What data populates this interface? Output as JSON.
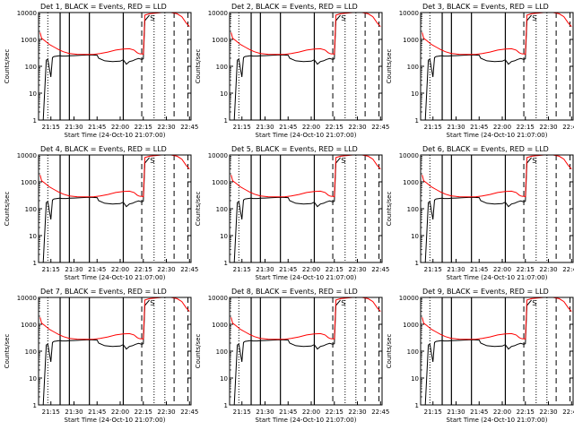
{
  "chart_data": [
    {
      "type": "line",
      "title": "Det 1, BLACK = Events, RED = LLD",
      "xlabel": "Start Time (24-Oct-10 21:07:00)",
      "ylabel": "Counts/sec",
      "scale": "log-y"
    },
    {
      "type": "line",
      "title": "Det 2, BLACK = Events, RED = LLD",
      "xlabel": "Start Time (24-Oct-10 21:07:00)",
      "ylabel": "Counts/sec",
      "scale": "log-y"
    },
    {
      "type": "line",
      "title": "Det 3, BLACK = Events, RED = LLD",
      "xlabel": "Start Time (24-Oct-10 21:07:00)",
      "ylabel": "Counts/sec",
      "scale": "log-y"
    },
    {
      "type": "line",
      "title": "Det 4, BLACK = Events, RED = LLD",
      "xlabel": "Start Time (24-Oct-10 21:07:00)",
      "ylabel": "Counts/sec",
      "scale": "log-y"
    },
    {
      "type": "line",
      "title": "Det 5, BLACK = Events, RED = LLD",
      "xlabel": "Start Time (24-Oct-10 21:07:00)",
      "ylabel": "Counts/sec",
      "scale": "log-y"
    },
    {
      "type": "line",
      "title": "Det 6, BLACK = Events, RED = LLD",
      "xlabel": "Start Time (24-Oct-10 21:07:00)",
      "ylabel": "Counts/sec",
      "scale": "log-y"
    },
    {
      "type": "line",
      "title": "Det 7, BLACK = Events, RED = LLD",
      "xlabel": "Start Time (24-Oct-10 21:07:00)",
      "ylabel": "Counts/sec",
      "scale": "log-y"
    },
    {
      "type": "line",
      "title": "Det 8, BLACK = Events, RED = LLD",
      "xlabel": "Start Time (24-Oct-10 21:07:00)",
      "ylabel": "Counts/sec",
      "scale": "log-y"
    },
    {
      "type": "line",
      "title": "Det 9, BLACK = Events, RED = LLD",
      "xlabel": "Start Time (24-Oct-10 21:07:00)",
      "ylabel": "Counts/sec",
      "scale": "log-y"
    }
  ],
  "shared": {
    "x_range": [
      "21:07:00",
      "22:46:00"
    ],
    "ylim": [
      1,
      10000
    ],
    "x_ticks": [
      "21:15",
      "21:30",
      "21:45",
      "22:00",
      "22:15",
      "22:30",
      "22:45"
    ],
    "y_ticks": [
      1,
      10,
      100,
      1000,
      10000
    ],
    "y_tick_labels": [
      "1",
      "10",
      "100",
      "1000",
      "10000"
    ],
    "solid_markers": [
      "21:21",
      "21:27",
      "21:40",
      "22:02"
    ],
    "dashed_markers": [
      "22:14",
      "22:35",
      "22:44"
    ],
    "dotted_markers": [
      "21:13",
      "22:22",
      "22:29"
    ],
    "saa_label": "S",
    "series_colors": {
      "events": "#000000",
      "lld": "#ff0000",
      "markers": "#000000"
    }
  },
  "series_events": {
    "x": [
      "21:08",
      "21:10",
      "21:12",
      "21:13",
      "21:15",
      "21:16",
      "21:17",
      "21:19",
      "21:21",
      "21:22",
      "21:25",
      "21:27",
      "21:30",
      "21:35",
      "21:40",
      "21:45",
      "21:46",
      "21:50",
      "21:55",
      "22:00",
      "22:02",
      "22:04",
      "22:06",
      "22:08",
      "22:10",
      "22:12",
      "22:14",
      "22:15",
      "22:16",
      "22:19"
    ],
    "y": [
      0,
      0,
      170,
      180,
      40,
      210,
      230,
      240,
      250,
      240,
      240,
      245,
      250,
      260,
      265,
      260,
      200,
      160,
      150,
      155,
      175,
      120,
      150,
      160,
      180,
      195,
      180,
      190,
      5000,
      8000
    ]
  },
  "series_lld": {
    "x": [
      "21:08",
      "21:09",
      "21:11",
      "21:14",
      "21:17",
      "21:20",
      "21:23",
      "21:27",
      "21:32",
      "21:38",
      "21:43",
      "21:47",
      "21:52",
      "21:57",
      "22:02",
      "22:06",
      "22:09",
      "22:11",
      "22:12",
      "22:13",
      "22:14",
      "22:15",
      "22:16",
      "22:19",
      "22:27",
      "22:30",
      "22:33",
      "22:37",
      "22:40",
      "22:43",
      "22:45"
    ],
    "y": [
      1800,
      1100,
      900,
      650,
      520,
      420,
      350,
      300,
      280,
      275,
      280,
      300,
      340,
      400,
      440,
      450,
      400,
      320,
      300,
      290,
      290,
      280,
      8000,
      9000,
      12000,
      12000,
      12000,
      9000,
      7000,
      4000,
      3000
    ]
  }
}
